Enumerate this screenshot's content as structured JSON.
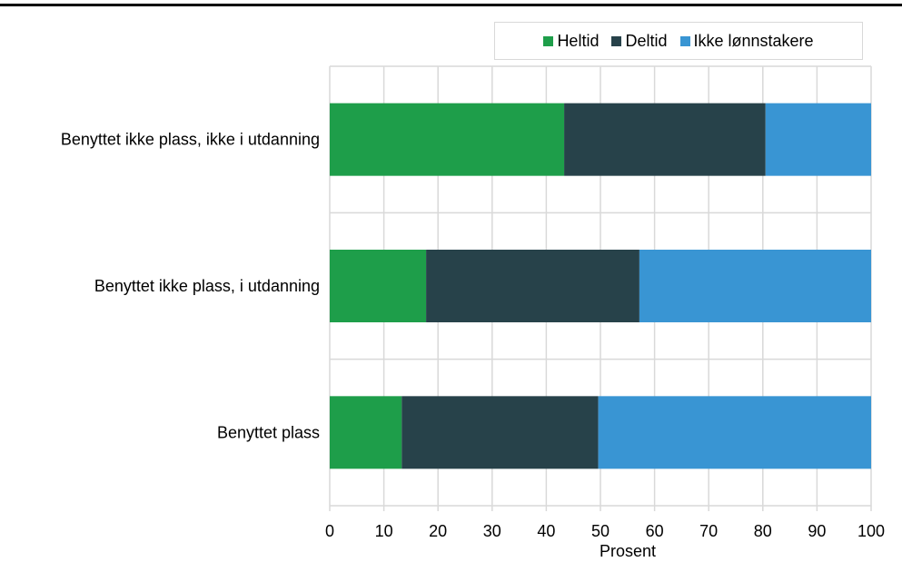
{
  "chart_data": {
    "type": "bar",
    "orientation": "horizontal",
    "stacked": true,
    "title": "",
    "xlabel": "Prosent",
    "ylabel": "",
    "xlim": [
      0,
      100
    ],
    "xticks": [
      "0",
      "10",
      "20",
      "30",
      "40",
      "50",
      "60",
      "70",
      "80",
      "90",
      "100"
    ],
    "categories": [
      "Benyttet ikke plass, ikke i utdanning",
      "Benyttet ikke plass, i utdanning",
      "Benyttet plass"
    ],
    "series": [
      {
        "name": "Heltid",
        "color": "#1e9e4a",
        "values": [
          43.3,
          17.8,
          13.3
        ]
      },
      {
        "name": "Deltid",
        "color": "#27424a",
        "values": [
          37.2,
          39.4,
          36.3
        ]
      },
      {
        "name": "Ikke lønnstakere",
        "color": "#3995d3",
        "values": [
          19.5,
          42.8,
          50.4
        ]
      }
    ],
    "grid": true,
    "legend_position": "top-right"
  }
}
